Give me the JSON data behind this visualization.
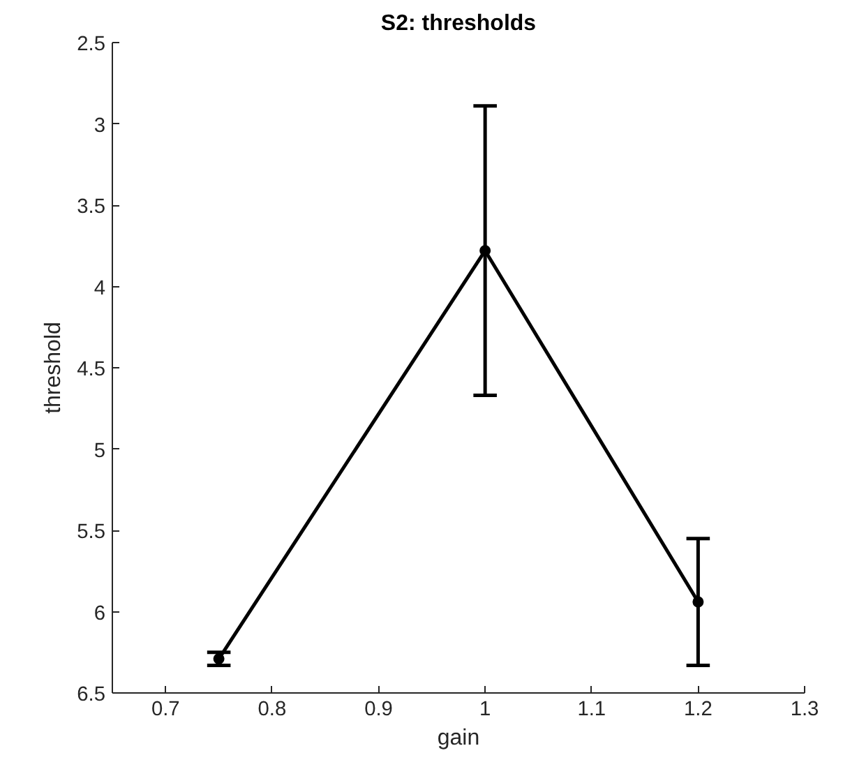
{
  "chart_data": {
    "type": "line",
    "title": "S2: thresholds",
    "xlabel": "gain",
    "ylabel": "threshold",
    "x": [
      0.75,
      1,
      1.2
    ],
    "series": [
      {
        "color": "#000000",
        "values": [
          6.29,
          3.78,
          5.94
        ],
        "errors": [
          0.04,
          0.89,
          0.39
        ]
      }
    ],
    "xlim": [
      0.65,
      1.3
    ],
    "xticks": [
      0.7,
      0.8,
      0.9,
      1,
      1.1,
      1.2,
      1.3
    ],
    "ylim": [
      6.5,
      2.5
    ],
    "yticks": [
      2.5,
      3,
      3.5,
      4,
      4.5,
      5,
      5.5,
      6,
      6.5
    ],
    "marker": "circle",
    "line_style": "solid",
    "grid": false
  }
}
